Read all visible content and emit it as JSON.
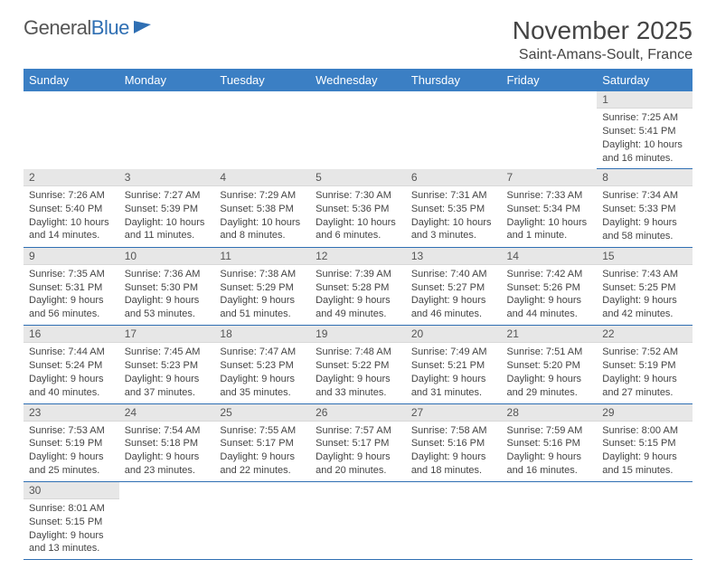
{
  "brand": {
    "part1": "General",
    "part2": "Blue"
  },
  "title": {
    "month": "November 2025",
    "location": "Saint-Amans-Soult, France"
  },
  "headerColors": {
    "bar": "#3b7fc4",
    "rule": "#2f6fb3",
    "dayBg": "#e7e7e7"
  },
  "weekdays": [
    "Sunday",
    "Monday",
    "Tuesday",
    "Wednesday",
    "Thursday",
    "Friday",
    "Saturday"
  ],
  "startWeekday": 6,
  "days": [
    {
      "n": 1,
      "sr": "7:25 AM",
      "ss": "5:41 PM",
      "dl": "10 hours and 16 minutes."
    },
    {
      "n": 2,
      "sr": "7:26 AM",
      "ss": "5:40 PM",
      "dl": "10 hours and 14 minutes."
    },
    {
      "n": 3,
      "sr": "7:27 AM",
      "ss": "5:39 PM",
      "dl": "10 hours and 11 minutes."
    },
    {
      "n": 4,
      "sr": "7:29 AM",
      "ss": "5:38 PM",
      "dl": "10 hours and 8 minutes."
    },
    {
      "n": 5,
      "sr": "7:30 AM",
      "ss": "5:36 PM",
      "dl": "10 hours and 6 minutes."
    },
    {
      "n": 6,
      "sr": "7:31 AM",
      "ss": "5:35 PM",
      "dl": "10 hours and 3 minutes."
    },
    {
      "n": 7,
      "sr": "7:33 AM",
      "ss": "5:34 PM",
      "dl": "10 hours and 1 minute."
    },
    {
      "n": 8,
      "sr": "7:34 AM",
      "ss": "5:33 PM",
      "dl": "9 hours and 58 minutes."
    },
    {
      "n": 9,
      "sr": "7:35 AM",
      "ss": "5:31 PM",
      "dl": "9 hours and 56 minutes."
    },
    {
      "n": 10,
      "sr": "7:36 AM",
      "ss": "5:30 PM",
      "dl": "9 hours and 53 minutes."
    },
    {
      "n": 11,
      "sr": "7:38 AM",
      "ss": "5:29 PM",
      "dl": "9 hours and 51 minutes."
    },
    {
      "n": 12,
      "sr": "7:39 AM",
      "ss": "5:28 PM",
      "dl": "9 hours and 49 minutes."
    },
    {
      "n": 13,
      "sr": "7:40 AM",
      "ss": "5:27 PM",
      "dl": "9 hours and 46 minutes."
    },
    {
      "n": 14,
      "sr": "7:42 AM",
      "ss": "5:26 PM",
      "dl": "9 hours and 44 minutes."
    },
    {
      "n": 15,
      "sr": "7:43 AM",
      "ss": "5:25 PM",
      "dl": "9 hours and 42 minutes."
    },
    {
      "n": 16,
      "sr": "7:44 AM",
      "ss": "5:24 PM",
      "dl": "9 hours and 40 minutes."
    },
    {
      "n": 17,
      "sr": "7:45 AM",
      "ss": "5:23 PM",
      "dl": "9 hours and 37 minutes."
    },
    {
      "n": 18,
      "sr": "7:47 AM",
      "ss": "5:23 PM",
      "dl": "9 hours and 35 minutes."
    },
    {
      "n": 19,
      "sr": "7:48 AM",
      "ss": "5:22 PM",
      "dl": "9 hours and 33 minutes."
    },
    {
      "n": 20,
      "sr": "7:49 AM",
      "ss": "5:21 PM",
      "dl": "9 hours and 31 minutes."
    },
    {
      "n": 21,
      "sr": "7:51 AM",
      "ss": "5:20 PM",
      "dl": "9 hours and 29 minutes."
    },
    {
      "n": 22,
      "sr": "7:52 AM",
      "ss": "5:19 PM",
      "dl": "9 hours and 27 minutes."
    },
    {
      "n": 23,
      "sr": "7:53 AM",
      "ss": "5:19 PM",
      "dl": "9 hours and 25 minutes."
    },
    {
      "n": 24,
      "sr": "7:54 AM",
      "ss": "5:18 PM",
      "dl": "9 hours and 23 minutes."
    },
    {
      "n": 25,
      "sr": "7:55 AM",
      "ss": "5:17 PM",
      "dl": "9 hours and 22 minutes."
    },
    {
      "n": 26,
      "sr": "7:57 AM",
      "ss": "5:17 PM",
      "dl": "9 hours and 20 minutes."
    },
    {
      "n": 27,
      "sr": "7:58 AM",
      "ss": "5:16 PM",
      "dl": "9 hours and 18 minutes."
    },
    {
      "n": 28,
      "sr": "7:59 AM",
      "ss": "5:16 PM",
      "dl": "9 hours and 16 minutes."
    },
    {
      "n": 29,
      "sr": "8:00 AM",
      "ss": "5:15 PM",
      "dl": "9 hours and 15 minutes."
    },
    {
      "n": 30,
      "sr": "8:01 AM",
      "ss": "5:15 PM",
      "dl": "9 hours and 13 minutes."
    }
  ],
  "labels": {
    "sunrise": "Sunrise:",
    "sunset": "Sunset:",
    "daylight": "Daylight:"
  }
}
